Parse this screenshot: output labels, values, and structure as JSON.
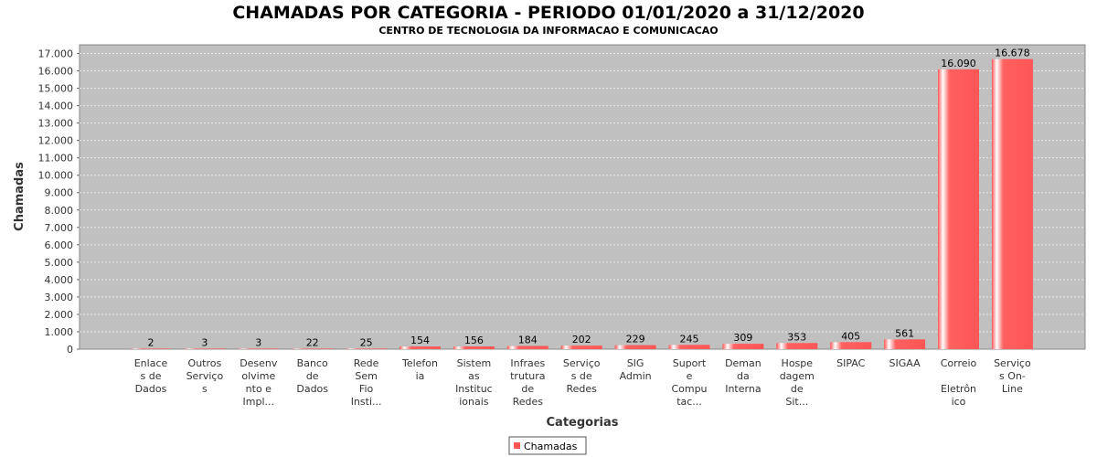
{
  "chart_data": {
    "type": "bar",
    "title": "CHAMADAS POR CATEGORIA - PERIODO 01/01/2020 a 31/12/2020",
    "subtitle": "CENTRO DE TECNOLOGIA DA INFORMACAO E COMUNICACAO",
    "xlabel": "Categorias",
    "ylabel": "Chamadas",
    "ylim": [
      0,
      17500
    ],
    "yticks": [
      "0",
      "1.000",
      "2.000",
      "3.000",
      "4.000",
      "5.000",
      "6.000",
      "7.000",
      "8.000",
      "9.000",
      "10.000",
      "11.000",
      "12.000",
      "13.000",
      "14.000",
      "15.000",
      "16.000",
      "17.000"
    ],
    "grid": true,
    "legend_position": "bottom",
    "categories": [
      [
        "Enlace",
        "s de",
        "Dados"
      ],
      [
        "Outros",
        "Serviço",
        "s"
      ],
      [
        "Desenv",
        "olvime",
        "nto e",
        "Impl..."
      ],
      [
        "Banco",
        "de",
        "Dados"
      ],
      [
        "Rede",
        "Sem",
        "Fio",
        "Insti..."
      ],
      [
        "Telefon",
        "ia"
      ],
      [
        "Sistem",
        "as",
        "Instituc",
        "ionais"
      ],
      [
        "Infraes",
        "trutura",
        "de",
        "Redes"
      ],
      [
        "Serviço",
        "s de",
        "Redes"
      ],
      [
        "SIG",
        "Admin"
      ],
      [
        "Suport",
        "e",
        "Compu",
        "tac..."
      ],
      [
        "Deman",
        "da",
        "Interna"
      ],
      [
        "Hospe",
        "dagem",
        "de",
        "Sit..."
      ],
      [
        "SIPAC"
      ],
      [
        "SIGAA"
      ],
      [
        "Correio",
        "",
        "Eletrôn",
        "ico"
      ],
      [
        "Serviço",
        "s On-",
        "Line"
      ]
    ],
    "series": [
      {
        "name": "Chamadas",
        "values": [
          2,
          3,
          3,
          22,
          25,
          154,
          156,
          184,
          202,
          229,
          245,
          309,
          353,
          405,
          561,
          16090,
          16678
        ],
        "labels": [
          "2",
          "3",
          "3",
          "22",
          "25",
          "154",
          "156",
          "184",
          "202",
          "229",
          "245",
          "309",
          "353",
          "405",
          "561",
          "16.090",
          "16.678"
        ]
      }
    ],
    "colors": {
      "bar": "#ff5555",
      "bar_highlight": "#ffffff",
      "plot_background": "#c0c0c0",
      "grid": "#e8e8e8"
    }
  }
}
